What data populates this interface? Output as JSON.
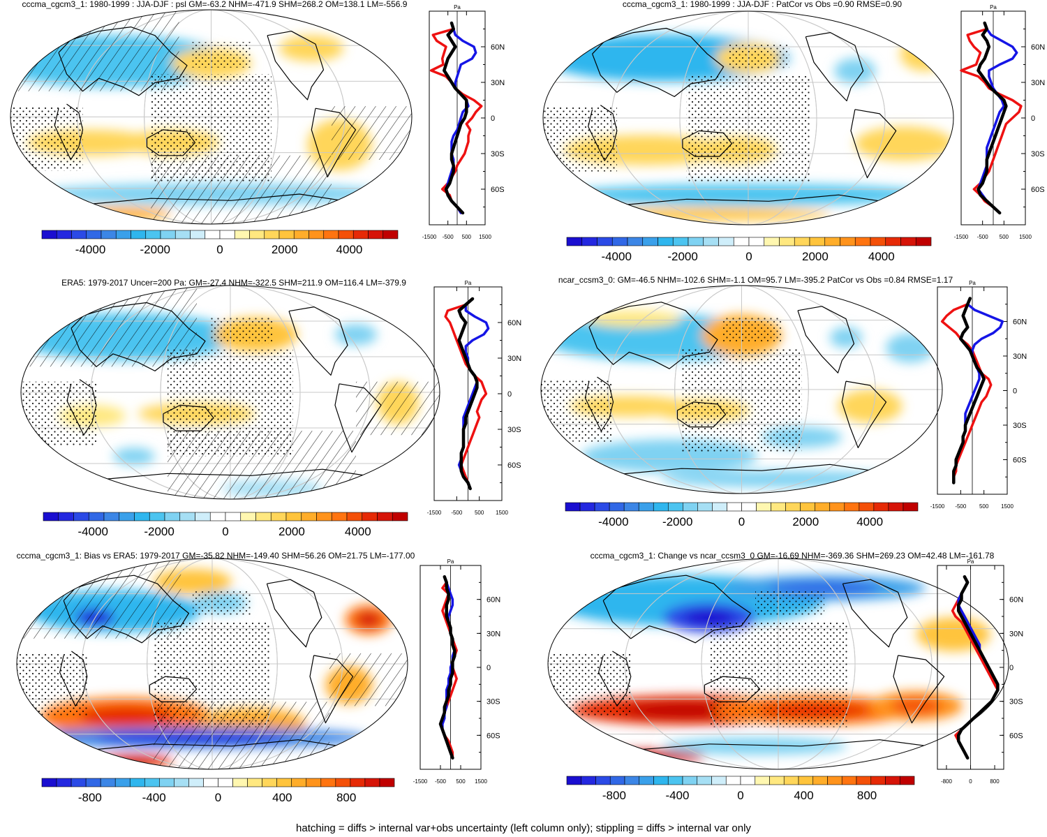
{
  "figure": {
    "footnote": "hatching = diffs > internal var+obs uncertainty (left column only); stippling = diffs > internal var only",
    "profile_unit": "Pa",
    "lat_ticks": [
      "60N",
      "30N",
      "0",
      "30S",
      "60S"
    ],
    "colors": {
      "blue_line": "#1515e6",
      "red_line": "#ee1111",
      "black_line": "#000000",
      "grid": "#c8c8c8"
    }
  },
  "chart_data": [
    {
      "type": "heatmap",
      "panel": "a",
      "title": "cccma_cgcm3_1: 1980-1999 : JJA-DJF : psl GM=-63.2 NHM=-471.9 SHM=268.2 OM=138.1 LM=-556.9",
      "colorbar": {
        "ticks": [
          "-4000",
          "-2000",
          "0",
          "2000",
          "4000"
        ],
        "range": [
          -5500,
          5500
        ]
      },
      "profile": {
        "xticks": [
          "-1500",
          "-500",
          "500",
          "1500"
        ],
        "xlim": [
          -1500,
          1500
        ],
        "ylim": [
          -90,
          90
        ]
      },
      "hatching": true,
      "stippling": true
    },
    {
      "type": "heatmap",
      "panel": "b",
      "title": "cccma_cgcm3_1: 1980-1999 : JJA-DJF : PatCor vs Obs =0.90 RMSE=0.90",
      "colorbar": {
        "ticks": [
          "-4000",
          "-2000",
          "0",
          "2000",
          "4000"
        ],
        "range": [
          -5500,
          5500
        ]
      },
      "profile": {
        "xticks": [
          "-1500",
          "-500",
          "500",
          "1500"
        ],
        "xlim": [
          -1500,
          1500
        ],
        "ylim": [
          -90,
          90
        ]
      },
      "hatching": false,
      "stippling": true
    },
    {
      "type": "heatmap",
      "panel": "c",
      "title": "ERA5: 1979-2017 Uncer=200 Pa: GM=-27.4 NHM=-322.5 SHM=211.9 OM=116.4 LM=-379.9",
      "colorbar": {
        "ticks": [
          "-4000",
          "-2000",
          "0",
          "2000",
          "4000"
        ],
        "range": [
          -5500,
          5500
        ]
      },
      "profile": {
        "xticks": [
          "-1500",
          "-500",
          "500",
          "1500"
        ],
        "xlim": [
          -1500,
          1500
        ],
        "ylim": [
          -90,
          90
        ]
      },
      "hatching": true,
      "stippling": true
    },
    {
      "type": "heatmap",
      "panel": "d",
      "title": "ncar_ccsm3_0: GM=-46.5 NHM=-102.6 SHM=-1.1 OM=95.7 LM=-395.2 PatCor vs Obs =0.84 RMSE=1.17",
      "colorbar": {
        "ticks": [
          "-4000",
          "-2000",
          "0",
          "2000",
          "4000"
        ],
        "range": [
          -5500,
          5500
        ]
      },
      "profile": {
        "xticks": [
          "-1500",
          "-500",
          "500",
          "1500"
        ],
        "xlim": [
          -1500,
          1500
        ],
        "ylim": [
          -90,
          90
        ]
      },
      "hatching": false,
      "stippling": true
    },
    {
      "type": "heatmap",
      "panel": "e",
      "title": "cccma_cgcm3_1: Bias vs ERA5: 1979-2017 GM=-35.82 NHM=-149.40 SHM=56.26 OM=21.75 LM=-177.00",
      "colorbar": {
        "ticks": [
          "-800",
          "-400",
          "0",
          "400",
          "800"
        ],
        "range": [
          -1100,
          1100
        ]
      },
      "profile": {
        "xticks": [
          "-1500",
          "-500",
          "500",
          "1500"
        ],
        "xlim": [
          -1500,
          1500
        ],
        "ylim": [
          -90,
          90
        ]
      },
      "hatching": true,
      "stippling": true
    },
    {
      "type": "heatmap",
      "panel": "f",
      "title": "cccma_cgcm3_1: Change vs ncar_ccsm3_0 GM=-16.69 NHM=-369.36 SHM=269.23 OM=42.48 LM=-161.78",
      "colorbar": {
        "ticks": [
          "-800",
          "-400",
          "0",
          "400",
          "800"
        ],
        "range": [
          -1100,
          1100
        ]
      },
      "profile": {
        "xticks": [
          "-800",
          "0",
          "800"
        ],
        "xlim": [
          -1100,
          1100
        ],
        "ylim": [
          -90,
          90
        ]
      },
      "hatching": false,
      "stippling": true
    }
  ]
}
